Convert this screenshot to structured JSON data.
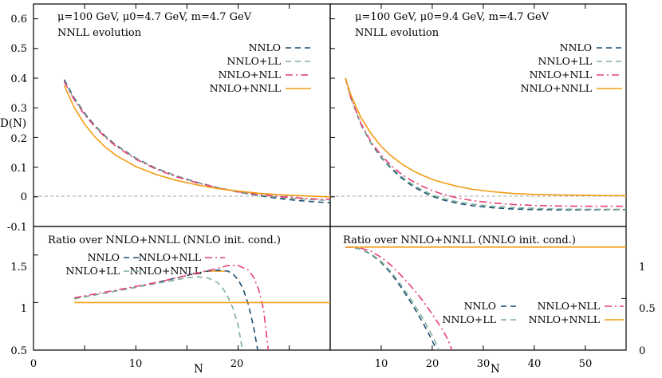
{
  "chart_data": {
    "type": "line",
    "colors": {
      "NNLO": "#1b4f72",
      "NNLO+LL": "#7fae9a",
      "NNLO+NLL": "#e83e78",
      "NNLO+NNLL": "#f39c12",
      "zero_line": "#aaaaaa"
    },
    "ylabel": "D(N)",
    "xlabel": "N",
    "panels": [
      {
        "id": "top-left",
        "title_line1": "μ=100 GeV, μ0=4.7 GeV, m=4.7 GeV",
        "title_line2": "NNLL evolution",
        "xlim": [
          0,
          29
        ],
        "ylim": [
          -0.1,
          0.65
        ],
        "yticks": [
          "-0.1",
          "0",
          "0.1",
          "0.2",
          "0.3",
          "0.4",
          "0.5",
          "0.6"
        ],
        "legend": [
          "NNLO",
          "NNLO+LL",
          "NNLO+NLL",
          "NNLO+NNLL"
        ],
        "series": [
          {
            "name": "NNLO",
            "x": [
              3,
              4,
              5,
              6,
              7,
              8,
              10,
              12,
              14,
              16,
              18,
              20,
              22,
              24,
              26,
              28,
              29
            ],
            "y": [
              0.395,
              0.332,
              0.282,
              0.24,
              0.205,
              0.176,
              0.13,
              0.096,
              0.07,
              0.049,
              0.031,
              0.016,
              0.004,
              -0.006,
              -0.013,
              -0.018,
              -0.02
            ]
          },
          {
            "name": "NNLO+LL",
            "x": [
              3,
              4,
              5,
              6,
              7,
              8,
              10,
              12,
              14,
              16,
              18,
              20,
              22,
              24,
              26,
              28,
              29
            ],
            "y": [
              0.39,
              0.328,
              0.279,
              0.238,
              0.203,
              0.174,
              0.129,
              0.095,
              0.069,
              0.048,
              0.031,
              0.017,
              0.006,
              -0.002,
              -0.007,
              -0.011,
              -0.012
            ]
          },
          {
            "name": "NNLO+NLL",
            "x": [
              3,
              4,
              5,
              6,
              7,
              8,
              10,
              12,
              14,
              16,
              18,
              20,
              22,
              24,
              26,
              28,
              29
            ],
            "y": [
              0.388,
              0.326,
              0.277,
              0.236,
              0.201,
              0.172,
              0.127,
              0.093,
              0.067,
              0.047,
              0.03,
              0.017,
              0.008,
              0.001,
              -0.004,
              -0.008,
              -0.009
            ]
          },
          {
            "name": "NNLO+NNLL",
            "x": [
              3,
              4,
              5,
              6,
              7,
              8,
              10,
              12,
              14,
              16,
              18,
              20,
              22,
              24,
              26,
              28,
              29
            ],
            "y": [
              0.375,
              0.3,
              0.245,
              0.202,
              0.168,
              0.141,
              0.102,
              0.075,
              0.055,
              0.04,
              0.028,
              0.019,
              0.012,
              0.007,
              0.004,
              0.001,
              0.0
            ]
          }
        ]
      },
      {
        "id": "top-right",
        "title_line1": "μ=100 GeV, μ0=9.4 GeV, m=4.7 GeV",
        "title_line2": "NNLL evolution",
        "xlim": [
          0,
          58
        ],
        "ylim": [
          -0.1,
          0.65
        ],
        "legend": [
          "NNLO",
          "NNLO+LL",
          "NNLO+NLL",
          "NNLO+NNLL"
        ],
        "series": [
          {
            "name": "NNLO",
            "x": [
              3,
              4,
              6,
              8,
              10,
              12,
              14,
              16,
              18,
              20,
              22,
              25,
              28,
              32,
              36,
              40,
              45,
              50,
              55,
              58
            ],
            "y": [
              0.4,
              0.335,
              0.245,
              0.18,
              0.132,
              0.094,
              0.063,
              0.038,
              0.018,
              0.002,
              -0.01,
              -0.022,
              -0.03,
              -0.037,
              -0.041,
              -0.043,
              -0.044,
              -0.044,
              -0.043,
              -0.043
            ]
          },
          {
            "name": "NNLO+LL",
            "x": [
              3,
              4,
              6,
              8,
              10,
              12,
              14,
              16,
              18,
              20,
              22,
              25,
              28,
              32,
              36,
              40,
              45,
              50,
              55,
              58
            ],
            "y": [
              0.4,
              0.335,
              0.246,
              0.182,
              0.135,
              0.098,
              0.068,
              0.043,
              0.023,
              0.007,
              -0.005,
              -0.017,
              -0.025,
              -0.032,
              -0.036,
              -0.039,
              -0.041,
              -0.042,
              -0.042,
              -0.042
            ]
          },
          {
            "name": "NNLO+NLL",
            "x": [
              3,
              4,
              6,
              8,
              10,
              12,
              14,
              16,
              18,
              20,
              22,
              25,
              28,
              32,
              36,
              40,
              45,
              50,
              55,
              58
            ],
            "y": [
              0.4,
              0.336,
              0.248,
              0.185,
              0.14,
              0.104,
              0.076,
              0.054,
              0.036,
              0.021,
              0.009,
              -0.004,
              -0.013,
              -0.021,
              -0.026,
              -0.029,
              -0.031,
              -0.032,
              -0.032,
              -0.032
            ]
          },
          {
            "name": "NNLO+NNLL",
            "x": [
              3,
              4,
              6,
              8,
              10,
              12,
              14,
              16,
              18,
              20,
              22,
              25,
              28,
              32,
              36,
              40,
              45,
              50,
              55,
              58
            ],
            "y": [
              0.4,
              0.345,
              0.268,
              0.213,
              0.17,
              0.137,
              0.111,
              0.09,
              0.073,
              0.059,
              0.048,
              0.035,
              0.025,
              0.017,
              0.011,
              0.008,
              0.006,
              0.005,
              0.004,
              0.004
            ]
          }
        ]
      },
      {
        "id": "bottom-left",
        "title": "Ratio over  NNLO+NNLL (NNLO init. cond.)",
        "xlim": [
          0,
          29
        ],
        "ylim": [
          0.5,
          1.8
        ],
        "yticks": [
          "0.5",
          "1",
          "1.5"
        ],
        "xticks": [
          "0",
          "10",
          "20"
        ],
        "legend": [
          "NNLO",
          "NNLO+LL",
          "NNLO+NLL",
          "NNLO+NNLL"
        ],
        "series": [
          {
            "name": "NNLO",
            "x": [
              4,
              6,
              8,
              10,
              12,
              14,
              16,
              17,
              18,
              19,
              19.5,
              20,
              20.5,
              21,
              21.5,
              22
            ],
            "y": [
              1.04,
              1.08,
              1.12,
              1.16,
              1.21,
              1.26,
              1.31,
              1.33,
              1.34,
              1.33,
              1.3,
              1.24,
              1.14,
              0.98,
              0.75,
              0.45
            ]
          },
          {
            "name": "NNLO+LL",
            "x": [
              4,
              6,
              8,
              10,
              12,
              14,
              15,
              16,
              17,
              18,
              18.5,
              19,
              19.5,
              20,
              20.5
            ],
            "y": [
              1.04,
              1.08,
              1.12,
              1.16,
              1.2,
              1.24,
              1.26,
              1.27,
              1.26,
              1.21,
              1.15,
              1.06,
              0.94,
              0.76,
              0.45
            ]
          },
          {
            "name": "NNLO+NLL",
            "x": [
              4,
              6,
              8,
              10,
              12,
              14,
              16,
              18,
              19,
              20,
              21,
              21.5,
              22,
              22.5,
              23
            ],
            "y": [
              1.05,
              1.09,
              1.13,
              1.17,
              1.21,
              1.26,
              1.31,
              1.36,
              1.39,
              1.39,
              1.34,
              1.27,
              1.14,
              0.92,
              0.45
            ]
          },
          {
            "name": "NNLO+NNLL",
            "x": [
              4,
              29
            ],
            "y": [
              1.0,
              1.0
            ]
          }
        ]
      },
      {
        "id": "bottom-right",
        "title": "Ratio over  NNLO+NNLL (NNLO init. cond.)",
        "xlim": [
          0,
          58
        ],
        "ylim": [
          0,
          1.2
        ],
        "yticks": [
          "0",
          "0.5",
          "1"
        ],
        "xticks": [
          "10",
          "20",
          "30",
          "40",
          "50"
        ],
        "legend": [
          "NNLO",
          "NNLO+LL",
          "NNLO+NLL",
          "NNLO+NNLL"
        ],
        "series": [
          {
            "name": "NNLO",
            "x": [
              3,
              4,
              6,
              8,
              10,
              12,
              14,
              16,
              18,
              19,
              20,
              20.5,
              21
            ],
            "y": [
              1.0,
              1.0,
              0.98,
              0.93,
              0.85,
              0.74,
              0.6,
              0.45,
              0.28,
              0.19,
              0.09,
              0.04,
              -0.02
            ]
          },
          {
            "name": "NNLO+LL",
            "x": [
              3,
              4,
              6,
              8,
              10,
              12,
              14,
              16,
              18,
              19,
              20,
              21,
              21.5
            ],
            "y": [
              1.0,
              1.0,
              0.98,
              0.935,
              0.86,
              0.755,
              0.625,
              0.48,
              0.32,
              0.23,
              0.14,
              0.04,
              -0.02
            ]
          },
          {
            "name": "NNLO+NLL",
            "x": [
              3,
              4,
              6,
              8,
              10,
              12,
              14,
              16,
              18,
              20,
              22,
              23,
              24
            ],
            "y": [
              1.0,
              1.0,
              0.99,
              0.96,
              0.9,
              0.82,
              0.72,
              0.61,
              0.49,
              0.35,
              0.2,
              0.11,
              -0.02
            ]
          },
          {
            "name": "NNLO+NNLL",
            "x": [
              3,
              58
            ],
            "y": [
              1.0,
              1.0
            ]
          }
        ]
      }
    ]
  }
}
